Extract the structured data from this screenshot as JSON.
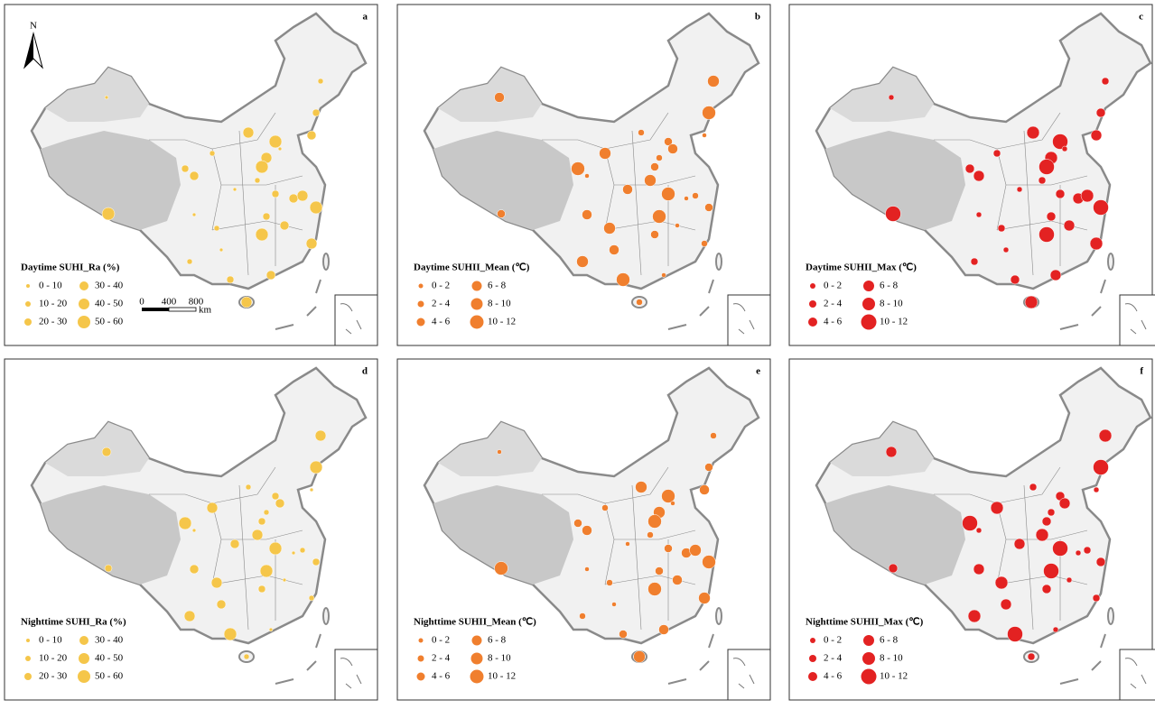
{
  "panels": [
    {
      "letter": "a",
      "legend_title": "Daytime SUHI_Ra (%)",
      "color": "#f5c64a",
      "classes": [
        "0 - 10",
        "10 - 20",
        "20 - 30",
        "30 - 40",
        "40 - 50",
        "50 - 60"
      ]
    },
    {
      "letter": "b",
      "legend_title": "Daytime SUHII_Mean (℃)",
      "color": "#f07f2e",
      "classes": [
        "0 - 2",
        "2 - 4",
        "4 - 6",
        "6 - 8",
        "8 - 10",
        "10 - 12"
      ]
    },
    {
      "letter": "c",
      "legend_title": "Daytime SUHII_Max (℃)",
      "color": "#e32222",
      "classes": [
        "0 - 2",
        "2 - 4",
        "4 - 6",
        "6 - 8",
        "8 - 10",
        "10 - 12"
      ]
    },
    {
      "letter": "d",
      "legend_title": "Nighttime SUHI_Ra (%)",
      "color": "#f5c64a",
      "classes": [
        "0 - 10",
        "10 - 20",
        "20 - 30",
        "30 - 40",
        "40 - 50",
        "50 - 60"
      ]
    },
    {
      "letter": "e",
      "legend_title": "Nighttime SUHII_Mean (℃)",
      "color": "#f07f2e",
      "classes": [
        "0 - 2",
        "2 - 4",
        "4 - 6",
        "6 - 8",
        "8 - 10",
        "10 - 12"
      ]
    },
    {
      "letter": "f",
      "legend_title": "Nighttime SUHII_Max (℃)",
      "color": "#e32222",
      "classes": [
        "0 - 2",
        "2 - 4",
        "4 - 6",
        "6 - 8",
        "8 - 10",
        "10 - 12"
      ]
    }
  ],
  "scale_bar": {
    "ticks": [
      "0",
      "400",
      "800"
    ],
    "unit": "km"
  },
  "north": "N"
}
